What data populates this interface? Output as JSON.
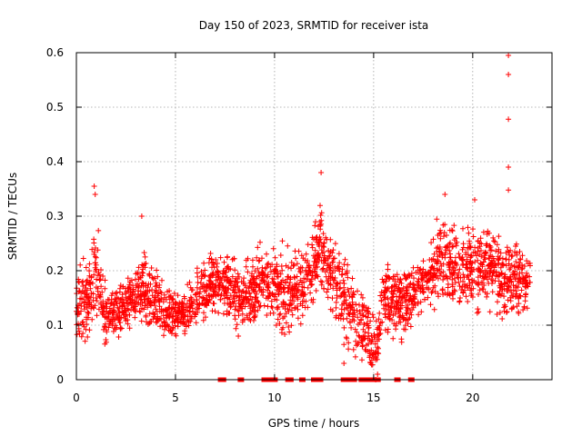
{
  "chart_data": {
    "type": "scatter",
    "title": "Day 150 of 2023, SRMTID for receiver ista",
    "xlabel": "GPS time / hours",
    "ylabel": "SRMTID / TECUs",
    "xlim": [
      0,
      24
    ],
    "ylim": [
      0,
      0.6
    ],
    "xticks": [
      0,
      5,
      10,
      15,
      20
    ],
    "yticks": [
      0,
      0.1,
      0.2,
      0.3,
      0.4,
      0.5,
      0.6
    ],
    "xtick_labels": [
      "0",
      "5",
      "10",
      "15",
      "20"
    ],
    "ytick_labels": [
      "0",
      "0.1",
      "0.2",
      "0.3",
      "0.4",
      "0.5",
      "0.6"
    ],
    "grid": true,
    "marker": "+",
    "color": "#ff0000",
    "series": [
      {
        "name": "SRMTID",
        "density_profile": [
          {
            "x": 0.0,
            "median": 0.14,
            "spread": 0.04
          },
          {
            "x": 0.8,
            "median": 0.15,
            "spread": 0.05
          },
          {
            "x": 1.0,
            "median": 0.2,
            "spread": 0.07
          },
          {
            "x": 1.5,
            "median": 0.11,
            "spread": 0.03
          },
          {
            "x": 2.5,
            "median": 0.14,
            "spread": 0.03
          },
          {
            "x": 3.3,
            "median": 0.17,
            "spread": 0.04
          },
          {
            "x": 4.5,
            "median": 0.12,
            "spread": 0.03
          },
          {
            "x": 5.5,
            "median": 0.12,
            "spread": 0.025
          },
          {
            "x": 6.5,
            "median": 0.17,
            "spread": 0.04
          },
          {
            "x": 7.5,
            "median": 0.18,
            "spread": 0.04
          },
          {
            "x": 8.5,
            "median": 0.15,
            "spread": 0.04
          },
          {
            "x": 9.5,
            "median": 0.18,
            "spread": 0.04
          },
          {
            "x": 10.5,
            "median": 0.16,
            "spread": 0.05
          },
          {
            "x": 11.5,
            "median": 0.17,
            "spread": 0.04
          },
          {
            "x": 12.3,
            "median": 0.25,
            "spread": 0.05
          },
          {
            "x": 13.0,
            "median": 0.18,
            "spread": 0.05
          },
          {
            "x": 14.0,
            "median": 0.13,
            "spread": 0.05
          },
          {
            "x": 15.1,
            "median": 0.05,
            "spread": 0.04
          },
          {
            "x": 15.5,
            "median": 0.16,
            "spread": 0.04
          },
          {
            "x": 16.5,
            "median": 0.14,
            "spread": 0.04
          },
          {
            "x": 17.5,
            "median": 0.18,
            "spread": 0.03
          },
          {
            "x": 18.5,
            "median": 0.22,
            "spread": 0.05
          },
          {
            "x": 19.5,
            "median": 0.2,
            "spread": 0.05
          },
          {
            "x": 20.5,
            "median": 0.21,
            "spread": 0.05
          },
          {
            "x": 21.5,
            "median": 0.19,
            "spread": 0.05
          },
          {
            "x": 22.3,
            "median": 0.18,
            "spread": 0.05
          },
          {
            "x": 22.8,
            "median": 0.18,
            "spread": 0.03
          }
        ],
        "x_range": [
          0.0,
          22.9
        ],
        "approx_point_count": 2500,
        "notable_points": [
          {
            "x": 0.9,
            "y": 0.355
          },
          {
            "x": 0.95,
            "y": 0.34
          },
          {
            "x": 3.3,
            "y": 0.3
          },
          {
            "x": 12.35,
            "y": 0.38
          },
          {
            "x": 18.6,
            "y": 0.34
          },
          {
            "x": 20.1,
            "y": 0.33
          },
          {
            "x": 21.8,
            "y": 0.595
          },
          {
            "x": 21.8,
            "y": 0.56
          },
          {
            "x": 21.8,
            "y": 0.478
          },
          {
            "x": 21.8,
            "y": 0.39
          },
          {
            "x": 21.8,
            "y": 0.348
          },
          {
            "x": 13.5,
            "y": 0.03
          },
          {
            "x": 15.1,
            "y": 0.0
          },
          {
            "x": 15.2,
            "y": 0.01
          }
        ],
        "zero_points_x": [
          7.3,
          7.4,
          8.3,
          9.5,
          9.7,
          10.0,
          10.7,
          10.8,
          11.4,
          12.0,
          12.3,
          13.5,
          13.7,
          13.9,
          14.0,
          14.4,
          14.7,
          15.0,
          15.2,
          16.2,
          16.9
        ]
      }
    ]
  }
}
